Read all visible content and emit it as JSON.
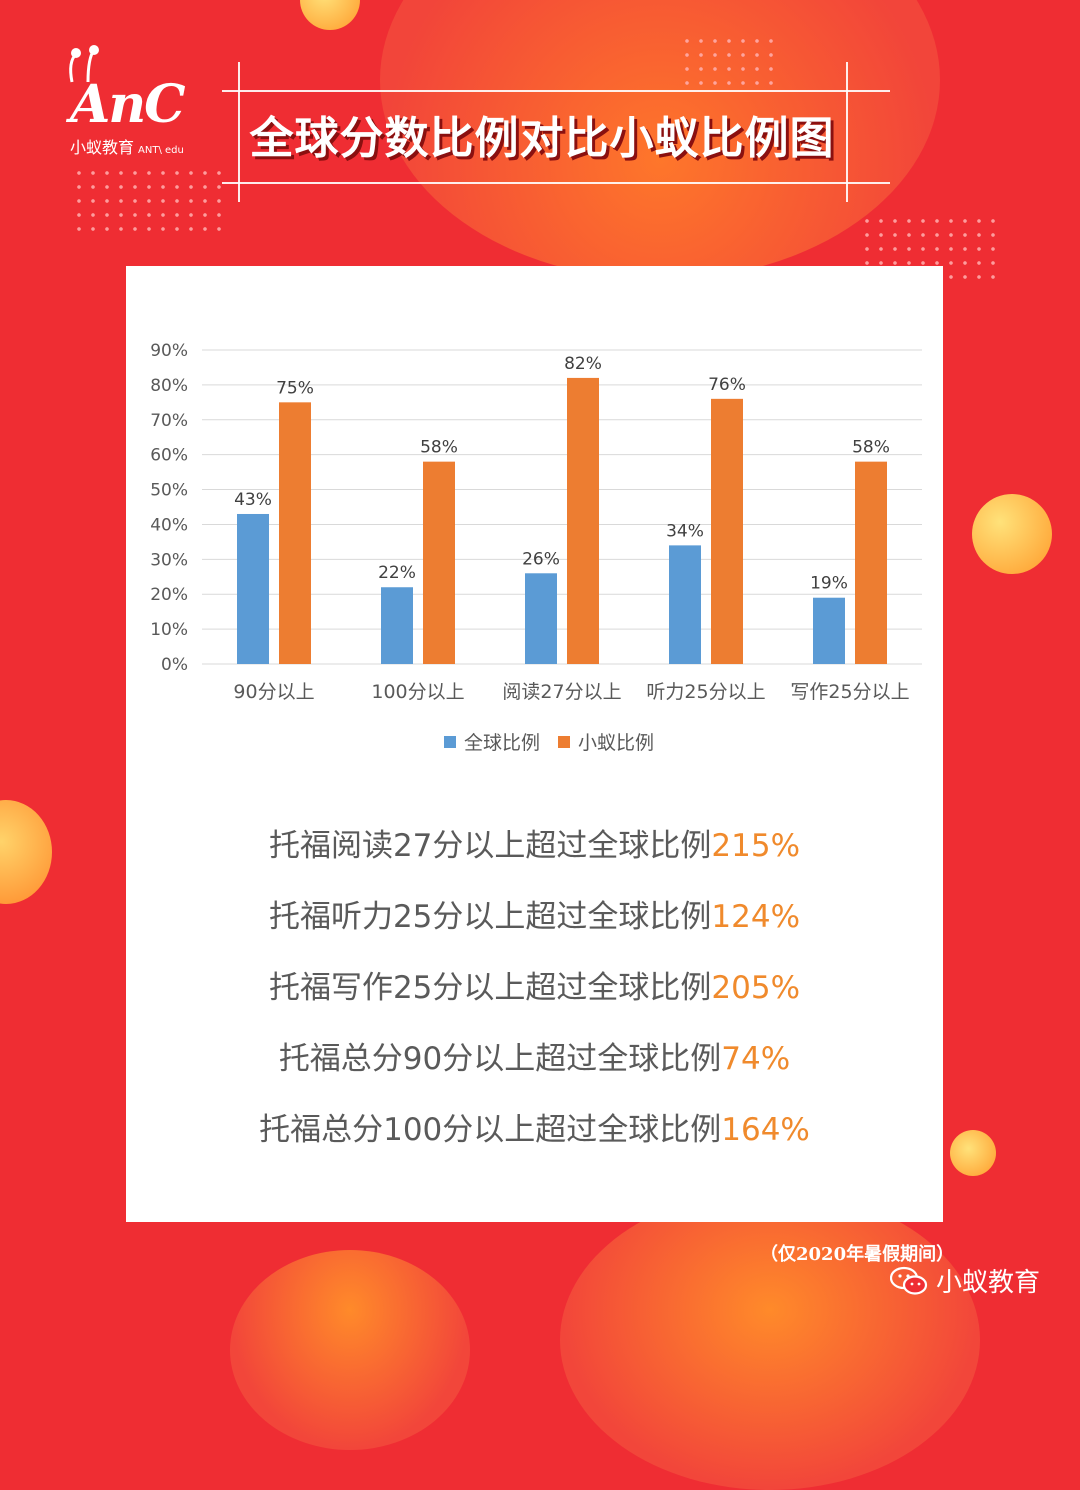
{
  "brand": {
    "logo_text": "AnC",
    "logo_sub_cn": "小蚁教育",
    "logo_sub_en": "ANT\\ edu"
  },
  "title": "全球分数比例对比小蚁比例图",
  "chart_data": {
    "type": "bar",
    "categories": [
      "90分以上",
      "100分以上",
      "阅读27分以上",
      "听力25分以上",
      "写作25分以上"
    ],
    "series": [
      {
        "name": "全球比例",
        "values": [
          43,
          22,
          26,
          34,
          19
        ],
        "color": "#5b9bd5"
      },
      {
        "name": "小蚁比例",
        "values": [
          75,
          58,
          82,
          76,
          58
        ],
        "color": "#ed7d31"
      }
    ],
    "data_labels": [
      [
        "43%",
        "22%",
        "26%",
        "34%",
        "19%"
      ],
      [
        "75%",
        "58%",
        "82%",
        "76%",
        "58%"
      ]
    ],
    "yticks": [
      "0%",
      "10%",
      "20%",
      "30%",
      "40%",
      "50%",
      "60%",
      "70%",
      "80%",
      "90%"
    ],
    "ylim": [
      0,
      90
    ],
    "grid": true,
    "legend": "bottom",
    "title": "",
    "xlabel": "",
    "ylabel": ""
  },
  "stats": [
    {
      "text": "托福阅读27分以上超过全球比例",
      "pct": "215%"
    },
    {
      "text": "托福听力25分以上超过全球比例",
      "pct": "124%"
    },
    {
      "text": "托福写作25分以上超过全球比例",
      "pct": "205%"
    },
    {
      "text": "托福总分90分以上超过全球比例",
      "pct": "74%"
    },
    {
      "text": "托福总分100分以上超过全球比例",
      "pct": "164%"
    }
  ],
  "footnote": "（仅2020年暑假期间）",
  "wechat": {
    "label": "小蚁教育",
    "icon": "wechat-icon"
  },
  "colors": {
    "background": "#ef2d33",
    "accent": "#f08a2c",
    "global": "#5b9bd5",
    "ant": "#ed7d31"
  }
}
